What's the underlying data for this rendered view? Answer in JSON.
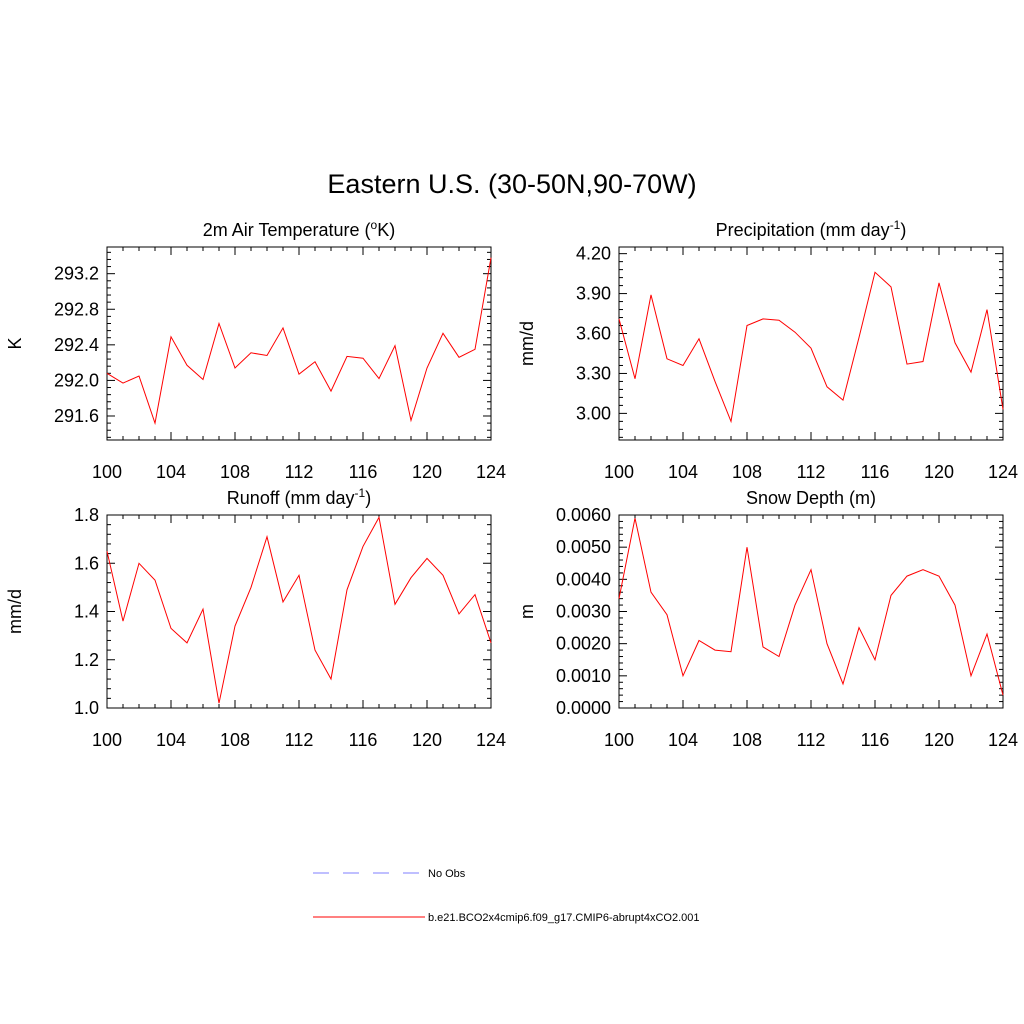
{
  "figure": {
    "title": "Eastern U.S. (30-50N,90-70W)"
  },
  "legend": {
    "entries": [
      {
        "label": "No Obs",
        "color": "#9999ff",
        "style": "dashed"
      },
      {
        "label": "b.e21.BCO2x4cmip6.f09_g17.CMIP6-abrupt4xCO2.001",
        "color": "#ff0000",
        "style": "solid"
      }
    ]
  },
  "chart_data": [
    {
      "type": "line",
      "title": "2m Air Temperature (",
      "title_sup": "o",
      "title_after": "K)",
      "xlabel": "",
      "ylabel": "K",
      "xlim": [
        100,
        124
      ],
      "ylim": [
        291.33,
        293.5
      ],
      "xticks": [
        "100",
        "104",
        "108",
        "112",
        "116",
        "120",
        "124"
      ],
      "yticks": [
        "291.6",
        "292.0",
        "292.4",
        "292.8",
        "293.2"
      ],
      "x": [
        100,
        101,
        102,
        103,
        104,
        105,
        106,
        107,
        108,
        109,
        110,
        111,
        112,
        113,
        114,
        115,
        116,
        117,
        118,
        119,
        120,
        121,
        122,
        123,
        124
      ],
      "series": [
        {
          "name": "b.e21.BCO2x4cmip6.f09_g17.CMIP6-abrupt4xCO2.001",
          "color": "#ff0000",
          "values": [
            292.08,
            291.97,
            292.05,
            291.52,
            292.49,
            292.17,
            292.01,
            292.64,
            292.14,
            292.31,
            292.28,
            292.59,
            292.07,
            292.21,
            291.88,
            292.27,
            292.25,
            292.02,
            292.39,
            291.55,
            292.14,
            292.53,
            292.26,
            292.35,
            293.38
          ]
        }
      ]
    },
    {
      "type": "line",
      "title": "Precipitation (mm day",
      "title_sup": "-1",
      "title_after": ")",
      "xlabel": "",
      "ylabel": "mm/d",
      "xlim": [
        100,
        124
      ],
      "ylim": [
        2.8,
        4.25
      ],
      "xticks": [
        "100",
        "104",
        "108",
        "112",
        "116",
        "120",
        "124"
      ],
      "yticks": [
        "3.00",
        "3.30",
        "3.60",
        "3.90",
        "4.20"
      ],
      "x": [
        100,
        101,
        102,
        103,
        104,
        105,
        106,
        107,
        108,
        109,
        110,
        111,
        112,
        113,
        114,
        115,
        116,
        117,
        118,
        119,
        120,
        121,
        122,
        123,
        124
      ],
      "series": [
        {
          "name": "b.e21.BCO2x4cmip6.f09_g17.CMIP6-abrupt4xCO2.001",
          "color": "#ff0000",
          "values": [
            3.71,
            3.26,
            3.89,
            3.41,
            3.36,
            3.56,
            3.24,
            2.94,
            3.66,
            3.71,
            3.7,
            3.61,
            3.49,
            3.2,
            3.1,
            3.57,
            4.06,
            3.95,
            3.37,
            3.39,
            3.98,
            3.53,
            3.31,
            3.78,
            3.03
          ]
        }
      ]
    },
    {
      "type": "line",
      "title": "Runoff (mm day",
      "title_sup": "-1",
      "title_after": ")",
      "xlabel": "",
      "ylabel": "mm/d",
      "xlim": [
        100,
        124
      ],
      "ylim": [
        1.0,
        1.8
      ],
      "xticks": [
        "100",
        "104",
        "108",
        "112",
        "116",
        "120",
        "124"
      ],
      "yticks": [
        "1.0",
        "1.2",
        "1.4",
        "1.6",
        "1.8"
      ],
      "x": [
        100,
        101,
        102,
        103,
        104,
        105,
        106,
        107,
        108,
        109,
        110,
        111,
        112,
        113,
        114,
        115,
        116,
        117,
        118,
        119,
        120,
        121,
        122,
        123,
        124
      ],
      "series": [
        {
          "name": "b.e21.BCO2x4cmip6.f09_g17.CMIP6-abrupt4xCO2.001",
          "color": "#ff0000",
          "values": [
            1.65,
            1.36,
            1.6,
            1.53,
            1.33,
            1.27,
            1.41,
            1.02,
            1.34,
            1.5,
            1.71,
            1.44,
            1.55,
            1.24,
            1.12,
            1.49,
            1.67,
            1.79,
            1.43,
            1.54,
            1.62,
            1.55,
            1.39,
            1.47,
            1.27
          ]
        }
      ]
    },
    {
      "type": "line",
      "title": "Snow Depth (m)",
      "title_sup": "",
      "title_after": "",
      "xlabel": "",
      "ylabel": "m",
      "xlim": [
        100,
        124
      ],
      "ylim": [
        0.0,
        0.006
      ],
      "xticks": [
        "100",
        "104",
        "108",
        "112",
        "116",
        "120",
        "124"
      ],
      "yticks": [
        "0.0000",
        "0.0010",
        "0.0020",
        "0.0030",
        "0.0040",
        "0.0050",
        "0.0060"
      ],
      "x": [
        100,
        101,
        102,
        103,
        104,
        105,
        106,
        107,
        108,
        109,
        110,
        111,
        112,
        113,
        114,
        115,
        116,
        117,
        118,
        119,
        120,
        121,
        122,
        123,
        124
      ],
      "series": [
        {
          "name": "b.e21.BCO2x4cmip6.f09_g17.CMIP6-abrupt4xCO2.001",
          "color": "#ff0000",
          "values": [
            0.0034,
            0.0059,
            0.0036,
            0.0029,
            0.001,
            0.0021,
            0.0018,
            0.00175,
            0.005,
            0.0019,
            0.0016,
            0.0032,
            0.0043,
            0.002,
            0.00075,
            0.0025,
            0.0015,
            0.0035,
            0.0041,
            0.0043,
            0.0041,
            0.0032,
            0.001,
            0.0023,
            0.0004
          ]
        }
      ]
    }
  ]
}
